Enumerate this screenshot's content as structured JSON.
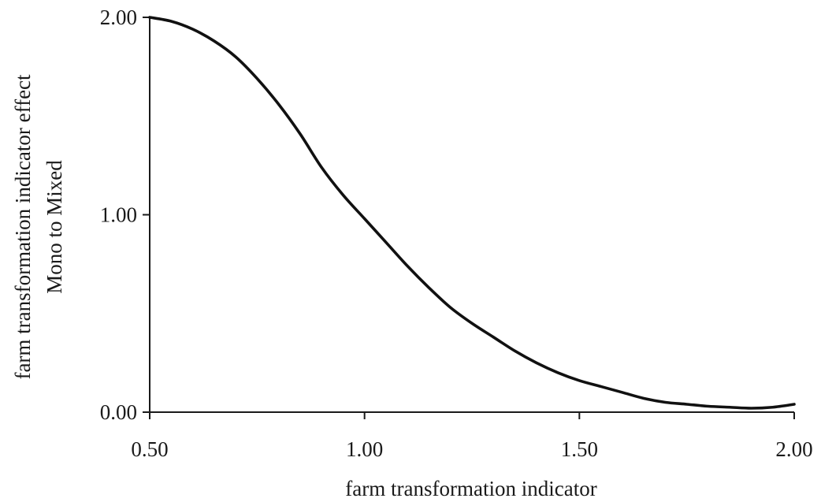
{
  "chart_data": {
    "type": "line",
    "title": "",
    "xlabel": "farm transformation indicator",
    "ylabel_lines": [
      "farm transformation indicator effect",
      "Mono to Mixed"
    ],
    "xlim": [
      0.5,
      2.0
    ],
    "ylim": [
      0.0,
      2.0
    ],
    "x_ticks": [
      0.5,
      1.0,
      1.5,
      2.0
    ],
    "x_tick_labels": [
      "0.50",
      "1.00",
      "1.50",
      "2.00"
    ],
    "y_ticks": [
      0.0,
      1.0,
      2.0
    ],
    "y_tick_labels": [
      "0.00",
      "1.00",
      "2.00"
    ],
    "grid": false,
    "legend": "none",
    "line_color": "#111111",
    "series": [
      {
        "x": [
          0.5,
          0.55,
          0.6,
          0.65,
          0.7,
          0.75,
          0.8,
          0.85,
          0.9,
          0.95,
          1.0,
          1.05,
          1.1,
          1.15,
          1.2,
          1.25,
          1.3,
          1.35,
          1.4,
          1.45,
          1.5,
          1.55,
          1.6,
          1.65,
          1.7,
          1.75,
          1.8,
          1.85,
          1.9,
          1.95,
          2.0
        ],
        "y": [
          2.0,
          1.98,
          1.94,
          1.88,
          1.8,
          1.69,
          1.56,
          1.41,
          1.24,
          1.1,
          0.98,
          0.86,
          0.74,
          0.63,
          0.53,
          0.45,
          0.38,
          0.31,
          0.25,
          0.2,
          0.16,
          0.13,
          0.1,
          0.07,
          0.05,
          0.04,
          0.03,
          0.025,
          0.02,
          0.025,
          0.04
        ]
      }
    ]
  }
}
